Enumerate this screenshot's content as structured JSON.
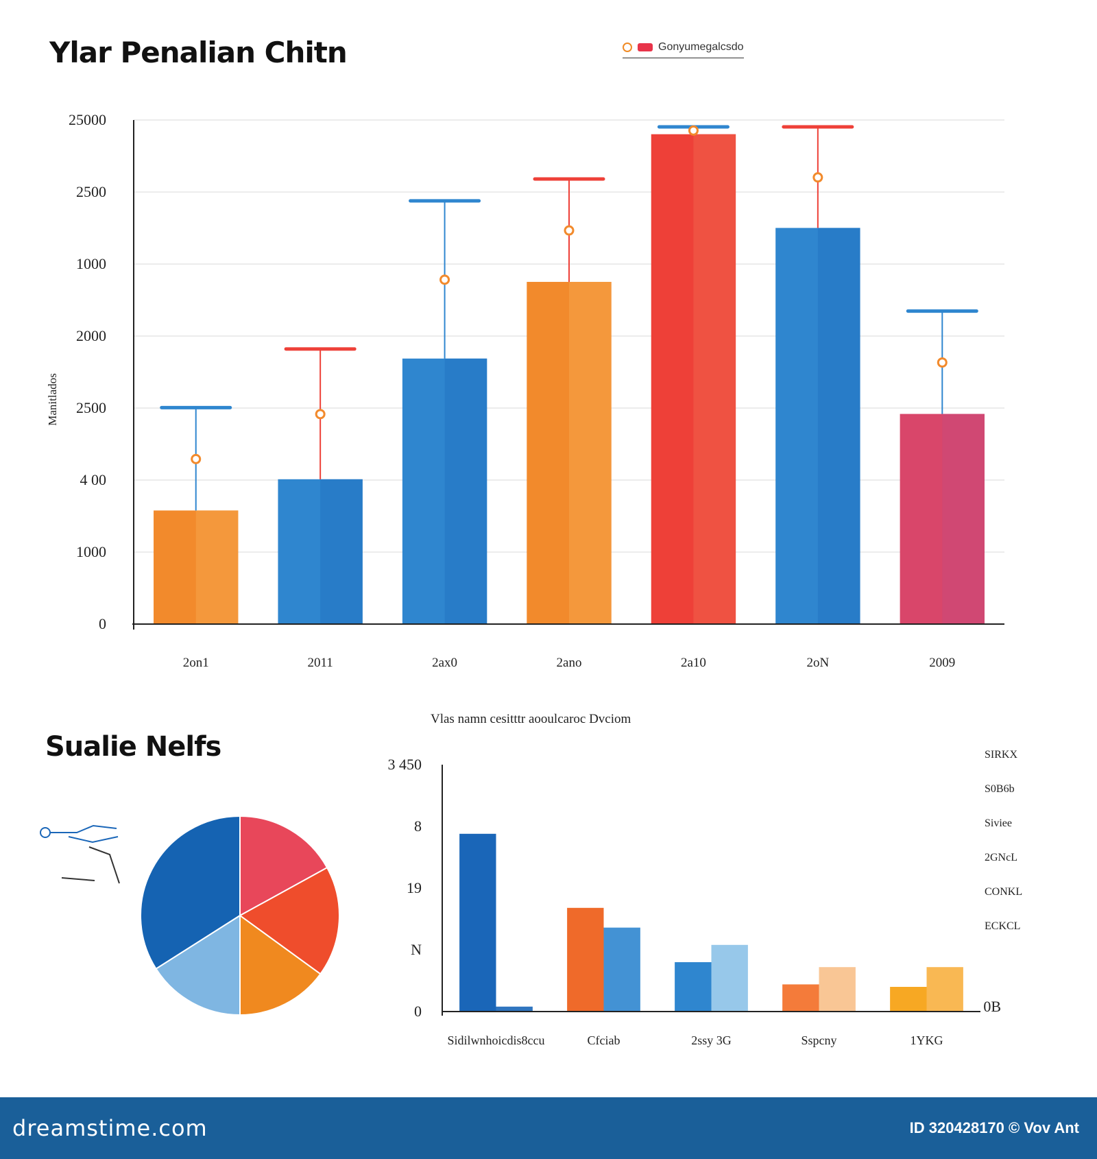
{
  "top_chart": {
    "title": "Ylar Penalian Chitn",
    "legend_text": "Gonyumegalcsdo"
  },
  "bottom": {
    "title": "Sualie Nelfs",
    "chart_subtitle": "Vlas namn cesitttr aooulcaroc Dvciom",
    "side_legend": [
      "SIRKX",
      "S0B6b",
      "Siviee",
      "2GNcL",
      "CONKL",
      "ECKCL"
    ],
    "right_axis_label": "0B"
  },
  "footer": {
    "brand": "dreamstime.com",
    "credit": "ID 320428170 © Vov Ant"
  },
  "colors": {
    "orange": "#f28a2c",
    "blue": "#2f86cf",
    "red": "#ee4038",
    "pink": "#d9466a",
    "light_blue": "#8cc2e8",
    "grid": "#d8d8d8",
    "footer": "#1a5f99"
  },
  "chart_data": [
    {
      "type": "bar",
      "title": "Ylar Penalian Chitn",
      "ylabel": "Manitlados",
      "categories": [
        "2on1",
        "2011",
        "2ax0",
        "2ano",
        "2a10",
        "2oN",
        "2009"
      ],
      "values": [
        800,
        1020,
        1870,
        2410,
        3450,
        2790,
        1480
      ],
      "bar_colors": [
        "orange",
        "blue",
        "blue",
        "orange",
        "red",
        "blue",
        "pink"
      ],
      "yticks": [
        "0",
        "1000",
        "4 00",
        "2500",
        "2000",
        "1000",
        "2500",
        "25000"
      ],
      "ylim": [
        0,
        3550
      ],
      "grid": true
    },
    {
      "type": "pie",
      "values": [
        34,
        17,
        18,
        15,
        16
      ],
      "slice_colors": [
        "#1563b2",
        "#e8475a",
        "#ef4d2c",
        "#f0891f",
        "#7fb6e2"
      ]
    },
    {
      "type": "bar",
      "title": "Vlas namn cesitttr aooulcaroc Dvciom",
      "categories": [
        "Sidilwnhoicdis8ccu",
        "Cfciab",
        "2ssy 3G",
        "Sspcny",
        "1YKG"
      ],
      "yticks": [
        "0",
        "N",
        "19",
        "8",
        "3 450"
      ],
      "ylim": [
        0,
        100
      ],
      "series": [
        {
          "values": [
            72,
            42,
            20,
            11,
            10
          ]
        },
        {
          "values": [
            2,
            34,
            27,
            18,
            18
          ]
        }
      ],
      "grid": false
    }
  ]
}
